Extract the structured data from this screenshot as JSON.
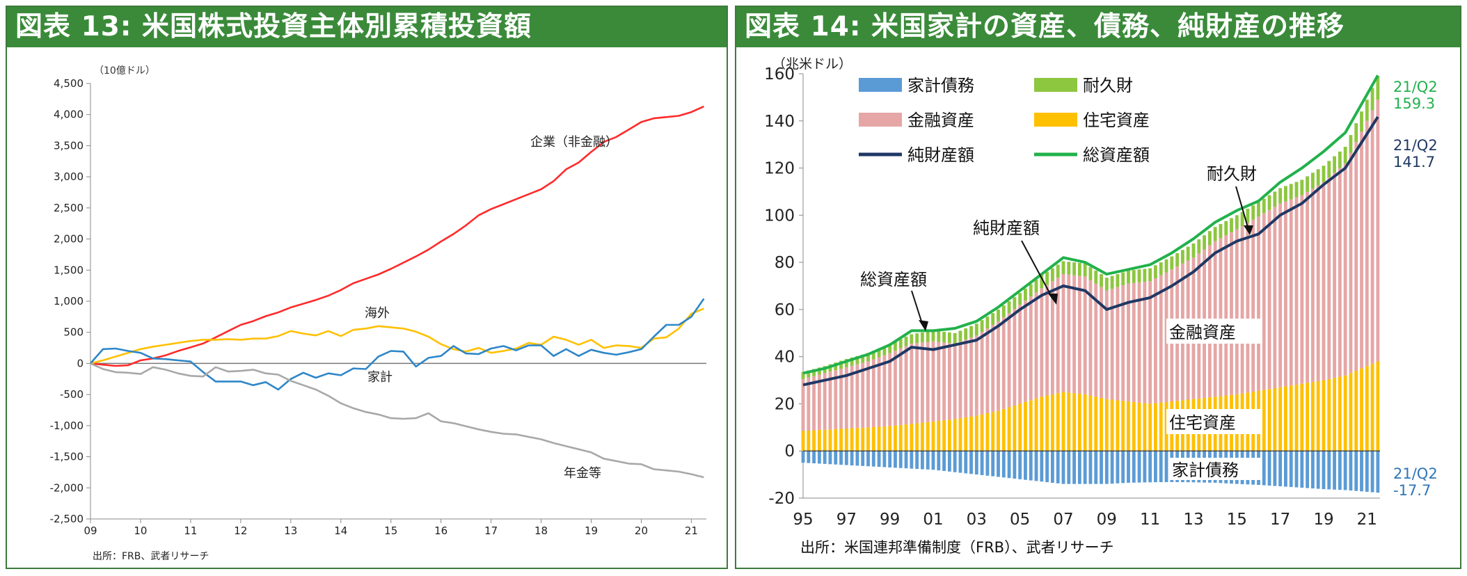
{
  "chart_data": [
    {
      "type": "line",
      "title": "図表 13: 米国株式投資主体別累積投資額",
      "unit_label": "（10億ドル）",
      "source": "出所：FRB、武者リサーチ",
      "ylim": [
        -2500,
        4500
      ],
      "yticks": [
        -2500,
        -2000,
        -1500,
        -1000,
        -500,
        0,
        500,
        1000,
        1500,
        2000,
        2500,
        3000,
        3500,
        4000,
        4500
      ],
      "yticklabels": [
        "-2,500",
        "-2,000",
        "-1,500",
        "-1,000",
        "-500",
        "0",
        "500",
        "1,000",
        "1,500",
        "2,000",
        "2,500",
        "3,000",
        "3,500",
        "4,000",
        "4,500"
      ],
      "xlim": [
        2009,
        2021.3
      ],
      "xticks": [
        "09",
        "10",
        "11",
        "12",
        "13",
        "14",
        "15",
        "16",
        "17",
        "18",
        "19",
        "20",
        "21"
      ],
      "series": [
        {
          "name": "企業（非金融）",
          "color": "#ff2a2a",
          "x": [
            2009,
            2009.25,
            2009.5,
            2009.75,
            2010,
            2010.25,
            2010.5,
            2010.75,
            2011,
            2011.25,
            2011.5,
            2011.75,
            2012,
            2012.25,
            2012.5,
            2012.75,
            2013,
            2013.25,
            2013.5,
            2013.75,
            2014,
            2014.25,
            2014.5,
            2014.75,
            2015,
            2015.25,
            2015.5,
            2015.75,
            2016,
            2016.25,
            2016.5,
            2016.75,
            2017,
            2017.25,
            2017.5,
            2017.75,
            2018,
            2018.25,
            2018.5,
            2018.75,
            2019,
            2019.25,
            2019.5,
            2019.75,
            2020,
            2020.25,
            2020.5,
            2020.75,
            2021,
            2021.25
          ],
          "values": [
            0,
            -20,
            -40,
            -30,
            50,
            80,
            130,
            200,
            260,
            320,
            420,
            520,
            620,
            680,
            760,
            820,
            900,
            960,
            1020,
            1090,
            1180,
            1290,
            1360,
            1430,
            1520,
            1620,
            1720,
            1830,
            1960,
            2080,
            2220,
            2380,
            2480,
            2560,
            2640,
            2720,
            2800,
            2930,
            3120,
            3230,
            3400,
            3560,
            3640,
            3760,
            3880,
            3940,
            3960,
            3980,
            4040,
            4130
          ]
        },
        {
          "name": "海外",
          "color": "#ffc000",
          "x": [
            2009,
            2009.25,
            2009.5,
            2009.75,
            2010,
            2010.25,
            2010.5,
            2010.75,
            2011,
            2011.25,
            2011.5,
            2011.75,
            2012,
            2012.25,
            2012.5,
            2012.75,
            2013,
            2013.25,
            2013.5,
            2013.75,
            2014,
            2014.25,
            2014.5,
            2014.75,
            2015,
            2015.25,
            2015.5,
            2015.75,
            2016,
            2016.25,
            2016.5,
            2016.75,
            2017,
            2017.25,
            2017.5,
            2017.75,
            2018,
            2018.25,
            2018.5,
            2018.75,
            2019,
            2019.25,
            2019.5,
            2019.75,
            2020,
            2020.25,
            2020.5,
            2020.75,
            2021,
            2021.25
          ],
          "values": [
            0,
            50,
            110,
            170,
            230,
            270,
            300,
            330,
            360,
            380,
            380,
            390,
            380,
            400,
            400,
            440,
            520,
            480,
            450,
            520,
            440,
            540,
            560,
            600,
            580,
            560,
            510,
            430,
            310,
            230,
            190,
            250,
            170,
            200,
            240,
            330,
            300,
            430,
            380,
            300,
            380,
            250,
            290,
            280,
            250,
            400,
            420,
            560,
            800,
            880
          ]
        },
        {
          "name": "家計",
          "color": "#2e86c8",
          "x": [
            2009,
            2009.25,
            2009.5,
            2009.75,
            2010,
            2010.25,
            2010.5,
            2010.75,
            2011,
            2011.25,
            2011.5,
            2011.75,
            2012,
            2012.25,
            2012.5,
            2012.75,
            2013,
            2013.25,
            2013.5,
            2013.75,
            2014,
            2014.25,
            2014.5,
            2014.75,
            2015,
            2015.25,
            2015.5,
            2015.75,
            2016,
            2016.25,
            2016.5,
            2016.75,
            2017,
            2017.25,
            2017.5,
            2017.75,
            2018,
            2018.25,
            2018.5,
            2018.75,
            2019,
            2019.25,
            2019.5,
            2019.75,
            2020,
            2020.25,
            2020.5,
            2020.75,
            2021,
            2021.25
          ],
          "values": [
            0,
            230,
            240,
            200,
            170,
            80,
            70,
            50,
            30,
            -140,
            -290,
            -290,
            -290,
            -350,
            -300,
            -420,
            -250,
            -150,
            -230,
            -160,
            -190,
            -80,
            -90,
            110,
            200,
            190,
            -50,
            90,
            120,
            280,
            160,
            150,
            240,
            280,
            210,
            290,
            290,
            120,
            230,
            120,
            220,
            170,
            140,
            180,
            230,
            430,
            620,
            620,
            750,
            1040
          ]
        },
        {
          "name": "年金等",
          "color": "#a8a8a8",
          "x": [
            2009,
            2009.25,
            2009.5,
            2009.75,
            2010,
            2010.25,
            2010.5,
            2010.75,
            2011,
            2011.25,
            2011.5,
            2011.75,
            2012,
            2012.25,
            2012.5,
            2012.75,
            2013,
            2013.25,
            2013.5,
            2013.75,
            2014,
            2014.25,
            2014.5,
            2014.75,
            2015,
            2015.25,
            2015.5,
            2015.75,
            2016,
            2016.25,
            2016.5,
            2016.75,
            2017,
            2017.25,
            2017.5,
            2017.75,
            2018,
            2018.25,
            2018.5,
            2018.75,
            2019,
            2019.25,
            2019.5,
            2019.75,
            2020,
            2020.25,
            2020.5,
            2020.75,
            2021,
            2021.25
          ],
          "values": [
            0,
            -90,
            -140,
            -150,
            -170,
            -60,
            -100,
            -160,
            -200,
            -210,
            -60,
            -130,
            -120,
            -100,
            -160,
            -180,
            -280,
            -350,
            -420,
            -520,
            -640,
            -720,
            -780,
            -820,
            -880,
            -890,
            -880,
            -800,
            -930,
            -960,
            -1010,
            -1060,
            -1100,
            -1130,
            -1140,
            -1180,
            -1220,
            -1280,
            -1330,
            -1380,
            -1430,
            -1530,
            -1570,
            -1610,
            -1620,
            -1700,
            -1720,
            -1740,
            -1780,
            -1830
          ]
        }
      ],
      "annotations": [
        "企業（非金融）",
        "海外",
        "家計",
        "年金等"
      ]
    },
    {
      "type": "bar",
      "title": "図表 14: 米国家計の資産、債務、純財産の推移",
      "unit_label": "（兆米ドル）",
      "source": "出所：米国連邦準備制度（FRB）、武者リサーチ",
      "ylim": [
        -20,
        160
      ],
      "yticks": [
        -20,
        0,
        20,
        40,
        60,
        80,
        100,
        120,
        140,
        160
      ],
      "xlim": [
        1995,
        2021.6
      ],
      "xticks": [
        "95",
        "97",
        "99",
        "01",
        "03",
        "05",
        "07",
        "09",
        "11",
        "13",
        "15",
        "17",
        "19",
        "21"
      ],
      "x": [
        1995,
        1996,
        1997,
        1998,
        1999,
        2000,
        2001,
        2002,
        2003,
        2004,
        2005,
        2006,
        2007,
        2008,
        2009,
        2010,
        2011,
        2012,
        2013,
        2014,
        2015,
        2016,
        2017,
        2018,
        2019,
        2020,
        2021.5
      ],
      "series": [
        {
          "name": "家計債務",
          "color": "#5b9bd5",
          "values": [
            -5,
            -5.5,
            -6,
            -6.5,
            -7,
            -7.5,
            -8,
            -9,
            -10,
            -11,
            -12,
            -13,
            -14,
            -14,
            -14,
            -13.5,
            -13.3,
            -13.2,
            -13.3,
            -13.5,
            -14,
            -14.4,
            -15,
            -15.6,
            -16.2,
            -16.6,
            -17.7
          ]
        },
        {
          "name": "住宅資産",
          "color": "#ffc000",
          "values": [
            8.5,
            9,
            9.5,
            10,
            10.5,
            11.5,
            12.5,
            13.5,
            15,
            17,
            20,
            23,
            25,
            24,
            22,
            21,
            20,
            21,
            22,
            23,
            24,
            25.5,
            27,
            28.5,
            30,
            32,
            38
          ]
        },
        {
          "name": "金融資産",
          "color": "#e6a6a6",
          "values": [
            22,
            24,
            26,
            28,
            31,
            34,
            34,
            32,
            34,
            38,
            42,
            46,
            50,
            50,
            46,
            50,
            52,
            56,
            60,
            66,
            70,
            74,
            78,
            80,
            84,
            90,
            111
          ]
        },
        {
          "name": "耐久財",
          "color": "#8dc63f",
          "values": [
            3,
            3,
            3.5,
            3.5,
            4,
            4,
            4.5,
            4.5,
            5,
            5,
            5,
            5.5,
            5.5,
            5.5,
            5.5,
            5.5,
            5.5,
            5.5,
            6,
            6,
            6,
            6,
            6.5,
            6.5,
            7,
            7,
            10
          ]
        },
        {
          "name": "純財産額",
          "color": "#1f3864",
          "values": [
            28,
            30,
            32,
            35,
            38,
            44,
            43,
            45,
            47,
            53,
            60,
            66,
            70,
            68,
            60,
            63,
            65,
            70,
            76,
            84,
            89,
            92,
            100,
            105,
            113,
            120,
            141.7
          ]
        },
        {
          "name": "総資産額",
          "color": "#22b14c",
          "values": [
            33,
            35,
            38,
            41,
            45,
            51,
            51,
            52,
            55,
            61,
            68,
            75,
            82,
            80,
            75,
            77,
            79,
            84,
            90,
            97,
            102,
            106,
            114,
            120,
            127,
            135,
            159.3
          ]
        }
      ],
      "labels": {
        "durable_end": "21/Q2\n159.3",
        "net_end": "21/Q2\n141.7",
        "debt_end": "21/Q2\n-17.7",
        "callout_total": "総資産額",
        "callout_net": "純財産額",
        "callout_durable": "耐久財",
        "area_financial": "金融資産",
        "area_housing": "住宅資産",
        "area_debt": "家計債務"
      },
      "legend": [
        "家計債務",
        "耐久財",
        "金融資産",
        "住宅資産",
        "純財産額",
        "総資産額"
      ]
    }
  ]
}
